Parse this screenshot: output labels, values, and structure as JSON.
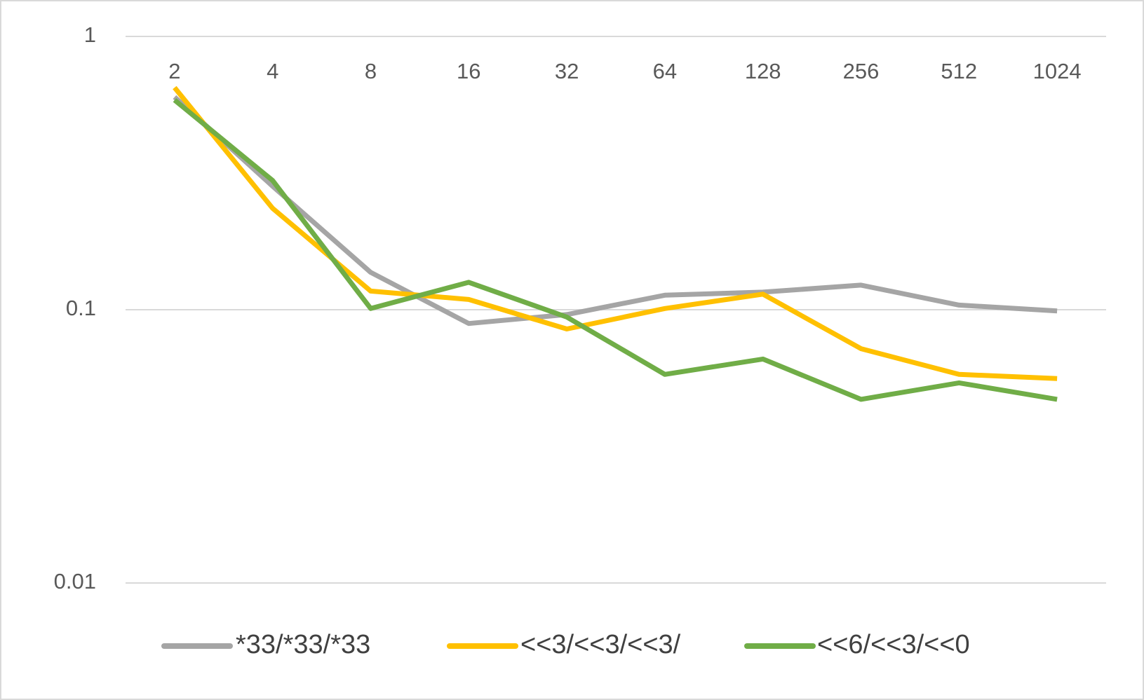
{
  "chart_data": {
    "type": "line",
    "categories": [
      "2",
      "4",
      "8",
      "16",
      "32",
      "64",
      "128",
      "256",
      "512",
      "1024"
    ],
    "series": [
      {
        "name": "*33/*33/*33",
        "color": "#a5a5a5",
        "values": [
          0.6,
          0.283,
          0.137,
          0.089,
          0.096,
          0.113,
          0.116,
          0.123,
          0.104,
          0.099
        ]
      },
      {
        "name": "<<3/<<3/<<3/",
        "color": "#ffc000",
        "values": [
          0.65,
          0.235,
          0.117,
          0.109,
          0.085,
          0.101,
          0.114,
          0.072,
          0.058,
          0.056
        ]
      },
      {
        "name": "<<6/<<3/<<0",
        "color": "#70ad47",
        "values": [
          0.585,
          0.297,
          0.101,
          0.126,
          0.094,
          0.058,
          0.066,
          0.047,
          0.054,
          0.047
        ]
      }
    ],
    "ylim": [
      0.01,
      1
    ],
    "yticks": [
      0.01,
      0.1,
      1
    ],
    "log_y": true,
    "grid": true,
    "legend": "bottom"
  }
}
